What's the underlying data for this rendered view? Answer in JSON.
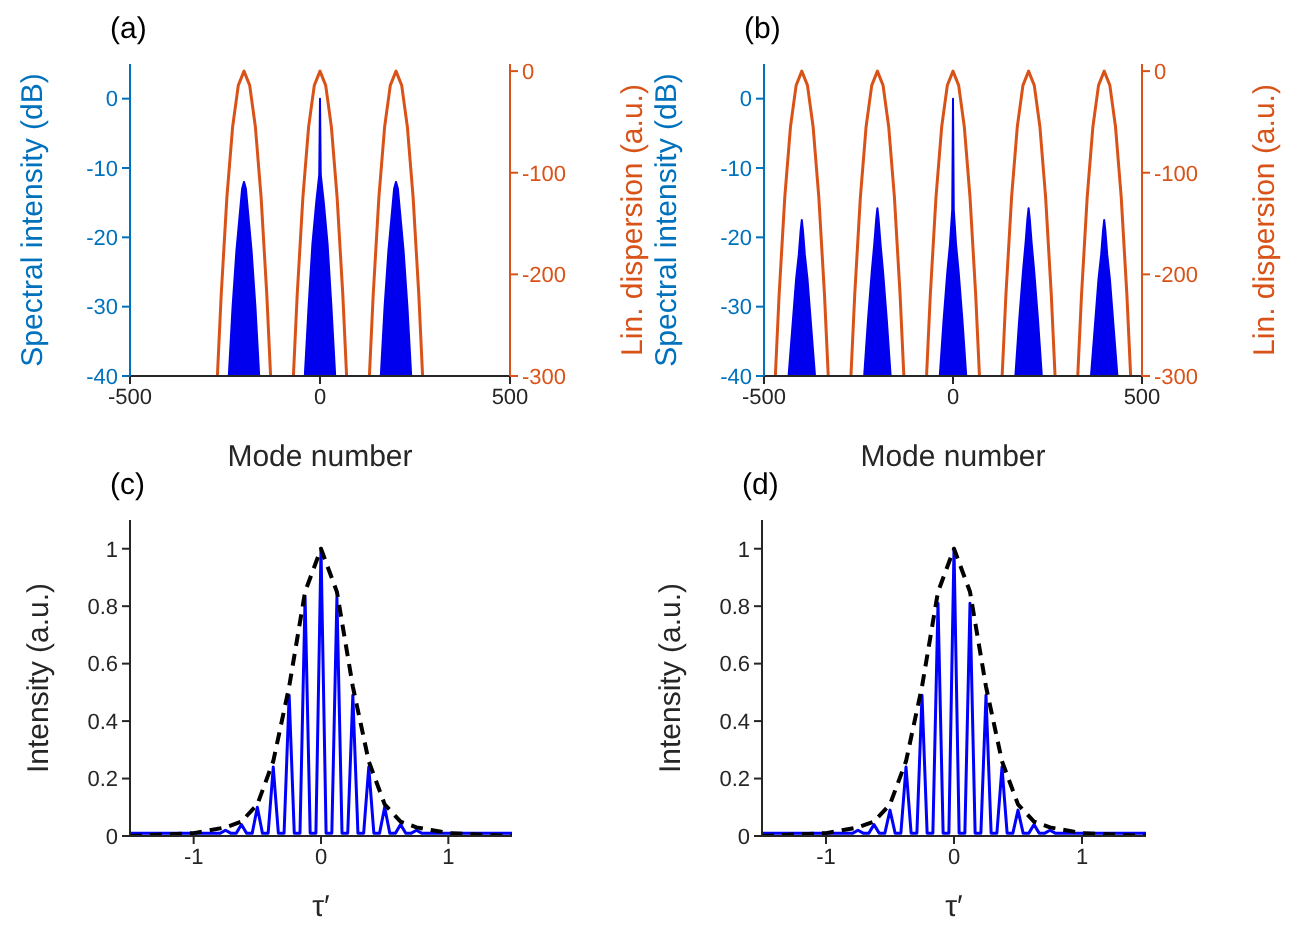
{
  "chart_data": [
    {
      "type": "area",
      "title": "(a)",
      "xlabel": "Mode number",
      "ylabel": "Spectral intensity (dB)",
      "y2label": "Lin. dispersion (a.u.)",
      "xlim": [
        -500,
        500
      ],
      "xticks": [
        -500,
        0,
        500
      ],
      "ylim": [
        -40,
        5
      ],
      "yticks": [
        -40,
        -30,
        -20,
        -10,
        0
      ],
      "y2lim": [
        -300,
        7
      ],
      "y2ticks": [
        -300,
        -200,
        -100,
        0
      ],
      "series": [
        {
          "color": "#0000ee",
          "x": [
            -240,
            -230,
            -220,
            -210,
            -205,
            -200,
            -195,
            -190,
            -180,
            -170,
            -160,
            -40,
            -30,
            -20,
            -10,
            -2,
            0,
            2,
            10,
            20,
            30,
            40,
            160,
            170,
            180,
            190,
            195,
            200,
            205,
            210,
            220,
            230,
            240
          ],
          "values": [
            -40,
            -30,
            -22,
            -16,
            -13,
            -12,
            -13,
            -16,
            -22,
            -30,
            -40,
            -40,
            -30,
            -21,
            -15,
            -11,
            0,
            -11,
            -15,
            -21,
            -30,
            -40,
            -40,
            -30,
            -22,
            -16,
            -13,
            -12,
            -13,
            -16,
            -22,
            -30,
            -40
          ]
        },
        {
          "type": "line",
          "axis": "y2",
          "color": "#d95319",
          "x": [
            -270,
            -260,
            -245,
            -230,
            -215,
            -200,
            -185,
            -170,
            -155,
            -140,
            -130,
            -100,
            -70,
            -60,
            -45,
            -30,
            -15,
            0,
            15,
            30,
            45,
            60,
            70,
            100,
            130,
            140,
            155,
            170,
            185,
            200,
            215,
            230,
            245,
            260,
            270
          ],
          "values": [
            -300,
            -220,
            -124,
            -55,
            -14,
            0,
            -14,
            -55,
            -124,
            -220,
            -300,
            null,
            -300,
            -220,
            -124,
            -55,
            -14,
            0,
            -14,
            -55,
            -124,
            -220,
            -300,
            null,
            -300,
            -220,
            -124,
            -55,
            -14,
            0,
            -14,
            -55,
            -124,
            -220,
            -300
          ]
        }
      ]
    },
    {
      "type": "area",
      "title": "(b)",
      "xlabel": "Mode number",
      "ylabel": "Spectral intensity (dB)",
      "y2label": "Lin. dispersion (a.u.)",
      "xlim": [
        -500,
        500
      ],
      "xticks": [
        -500,
        0,
        500
      ],
      "ylim": [
        -40,
        5
      ],
      "yticks": [
        -40,
        -30,
        -20,
        -10,
        0
      ],
      "y2lim": [
        -300,
        7
      ],
      "y2ticks": [
        -300,
        -200,
        -100,
        0
      ],
      "series": [
        {
          "color": "#0000ee",
          "x": [
            -435,
            -425,
            -415,
            -408,
            -403,
            -400,
            -397,
            -392,
            -385,
            -375,
            -365,
            -235,
            -225,
            -215,
            -208,
            -203,
            -200,
            -197,
            -192,
            -185,
            -175,
            -165,
            -35,
            -25,
            -15,
            -8,
            -2,
            0,
            2,
            8,
            15,
            25,
            35,
            165,
            175,
            185,
            192,
            197,
            200,
            203,
            208,
            215,
            225,
            235,
            365,
            375,
            385,
            392,
            397,
            400,
            403,
            408,
            415,
            425,
            435
          ],
          "values": [
            -40,
            -33,
            -26,
            -22.5,
            -19,
            -17.5,
            -19,
            -22.5,
            -26,
            -33,
            -40,
            -40,
            -32,
            -25,
            -20.8,
            -17.3,
            -15.8,
            -17.3,
            -20.8,
            -25,
            -32,
            -40,
            -40,
            -32,
            -25,
            -21,
            -16,
            0,
            -16,
            -21,
            -25,
            -32,
            -40,
            -40,
            -32,
            -25,
            -20.8,
            -17.3,
            -15.8,
            -17.3,
            -20.8,
            -25,
            -32,
            -40,
            -40,
            -33,
            -26,
            -22.5,
            -19,
            -17.5,
            -19,
            -22.5,
            -26,
            -33,
            -40
          ]
        },
        {
          "type": "line",
          "axis": "y2",
          "color": "#d95319",
          "x": [
            -470,
            -460,
            -445,
            -430,
            -415,
            -400,
            -385,
            -370,
            -355,
            -340,
            -330,
            -300,
            -270,
            -260,
            -245,
            -230,
            -215,
            -200,
            -185,
            -170,
            -155,
            -140,
            -130,
            -100,
            -70,
            -60,
            -45,
            -30,
            -15,
            0,
            15,
            30,
            45,
            60,
            70,
            100,
            130,
            140,
            155,
            170,
            185,
            200,
            215,
            230,
            245,
            260,
            270,
            300,
            330,
            340,
            355,
            370,
            385,
            400,
            415,
            430,
            445,
            460,
            470
          ],
          "values": [
            -300,
            -220,
            -124,
            -55,
            -14,
            0,
            -14,
            -55,
            -124,
            -220,
            -300,
            null,
            -300,
            -220,
            -124,
            -55,
            -14,
            0,
            -14,
            -55,
            -124,
            -220,
            -300,
            null,
            -300,
            -220,
            -124,
            -55,
            -14,
            0,
            -14,
            -55,
            -124,
            -220,
            -300,
            null,
            -300,
            -220,
            -124,
            -55,
            -14,
            0,
            -14,
            -55,
            -124,
            -220,
            -300,
            null,
            -300,
            -220,
            -124,
            -55,
            -14,
            0,
            -14,
            -55,
            -124,
            -220,
            -300
          ]
        }
      ]
    },
    {
      "type": "line",
      "title": "(c)",
      "xlabel": "τ′",
      "ylabel": "Intensity (a.u.)",
      "xlim": [
        -1.5,
        1.5
      ],
      "xticks": [
        -1,
        0,
        1
      ],
      "ylim": [
        0,
        1.1
      ],
      "yticks": [
        0,
        0.2,
        0.4,
        0.6,
        0.8,
        1
      ],
      "series": [
        {
          "color": "#0000ff",
          "x": [
            -1.5,
            -0.79,
            -0.75,
            -0.71,
            -0.665,
            -0.625,
            -0.585,
            -0.54,
            -0.5,
            -0.46,
            -0.415,
            -0.375,
            -0.335,
            -0.29,
            -0.25,
            -0.21,
            -0.165,
            -0.125,
            -0.085,
            -0.04,
            0,
            0.04,
            0.085,
            0.125,
            0.165,
            0.21,
            0.25,
            0.29,
            0.335,
            0.375,
            0.415,
            0.46,
            0.5,
            0.54,
            0.585,
            0.625,
            0.665,
            0.71,
            0.75,
            0.79,
            1.5
          ],
          "values": [
            0.01,
            0.01,
            0.02,
            0.01,
            0.01,
            0.04,
            0.01,
            0.01,
            0.1,
            0.01,
            0.01,
            0.24,
            0.01,
            0.01,
            0.49,
            0.01,
            0.01,
            0.83,
            0.01,
            0.01,
            1,
            0.01,
            0.01,
            0.83,
            0.01,
            0.01,
            0.49,
            0.01,
            0.01,
            0.24,
            0.01,
            0.01,
            0.1,
            0.01,
            0.01,
            0.04,
            0.01,
            0.01,
            0.02,
            0.01,
            0.01
          ]
        },
        {
          "color": "#000000",
          "line_style": "dashed",
          "x": [
            -1.5,
            -1,
            -0.875,
            -0.75,
            -0.625,
            -0.5,
            -0.375,
            -0.25,
            -0.125,
            0,
            0.125,
            0.25,
            0.375,
            0.5,
            0.625,
            0.75,
            0.875,
            1,
            1.5
          ],
          "values": [
            0,
            0.01,
            0.02,
            0.03,
            0.05,
            0.11,
            0.26,
            0.52,
            0.85,
            1,
            0.85,
            0.52,
            0.26,
            0.11,
            0.05,
            0.03,
            0.02,
            0.01,
            0
          ]
        }
      ]
    },
    {
      "type": "line",
      "title": "(d)",
      "xlabel": "τ′",
      "ylabel": "Intensity (a.u.)",
      "xlim": [
        -1.5,
        1.5
      ],
      "xticks": [
        -1,
        0,
        1
      ],
      "ylim": [
        0,
        1.1
      ],
      "yticks": [
        0,
        0.2,
        0.4,
        0.6,
        0.8,
        1
      ],
      "series": [
        {
          "color": "#0000ff",
          "x": [
            -1.5,
            -0.79,
            -0.75,
            -0.71,
            -0.665,
            -0.625,
            -0.585,
            -0.54,
            -0.5,
            -0.46,
            -0.415,
            -0.375,
            -0.335,
            -0.29,
            -0.25,
            -0.21,
            -0.165,
            -0.125,
            -0.085,
            -0.04,
            0,
            0.04,
            0.085,
            0.125,
            0.165,
            0.21,
            0.25,
            0.29,
            0.335,
            0.375,
            0.415,
            0.46,
            0.5,
            0.54,
            0.585,
            0.625,
            0.665,
            0.71,
            0.75,
            0.79,
            1.5
          ],
          "values": [
            0.01,
            0.01,
            0.02,
            0.01,
            0.01,
            0.04,
            0.01,
            0.01,
            0.09,
            0.01,
            0.01,
            0.24,
            0.01,
            0.01,
            0.49,
            0.01,
            0.01,
            0.81,
            0.01,
            0.01,
            1,
            0.01,
            0.01,
            0.81,
            0.01,
            0.01,
            0.49,
            0.01,
            0.01,
            0.24,
            0.01,
            0.01,
            0.09,
            0.01,
            0.01,
            0.04,
            0.01,
            0.01,
            0.02,
            0.01,
            0.01
          ]
        },
        {
          "color": "#000000",
          "line_style": "dashed",
          "x": [
            -1.5,
            -1,
            -0.875,
            -0.75,
            -0.625,
            -0.5,
            -0.375,
            -0.25,
            -0.125,
            0,
            0.125,
            0.25,
            0.375,
            0.5,
            0.625,
            0.75,
            0.875,
            1,
            1.5
          ],
          "values": [
            0,
            0.01,
            0.02,
            0.03,
            0.05,
            0.11,
            0.26,
            0.52,
            0.85,
            1,
            0.85,
            0.52,
            0.26,
            0.11,
            0.05,
            0.03,
            0.02,
            0.01,
            0
          ]
        }
      ]
    }
  ]
}
